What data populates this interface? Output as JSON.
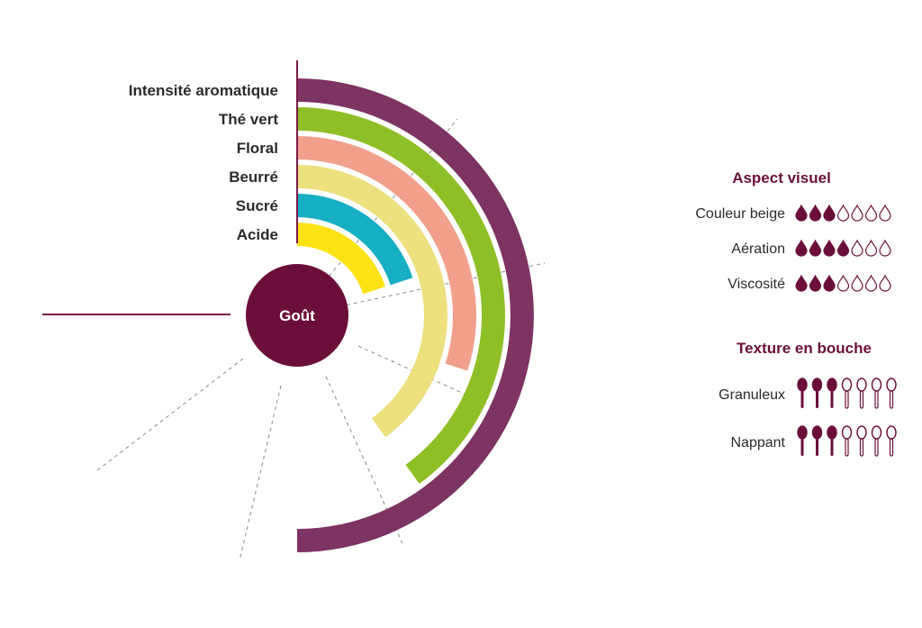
{
  "center_label": "Goût",
  "colors": {
    "accent": "#6b0f3a",
    "divider": "#7a1a45",
    "guide": "#8a8a8a"
  },
  "chart_data": {
    "type": "radial-bar",
    "series": [
      {
        "label": "Intensité aromatique",
        "color": "#7d3462",
        "value": 5
      },
      {
        "label": "Thé vert",
        "color": "#8fbf26",
        "value": 4
      },
      {
        "label": "Floral",
        "color": "#f2a08c",
        "value": 3
      },
      {
        "label": "Beurré",
        "color": "#ece07f",
        "value": 4
      },
      {
        "label": "Sucré",
        "color": "#16afc4",
        "value": 2
      },
      {
        "label": "Acide",
        "color": "#fde313",
        "value": 2
      }
    ],
    "scale_max": 6
  },
  "aspect_visuel": {
    "title": "Aspect visuel",
    "icon": "drop-icon",
    "max": 7,
    "items": [
      {
        "label": "Couleur beige",
        "value": 3
      },
      {
        "label": "Aération",
        "value": 4
      },
      {
        "label": "Viscosité",
        "value": 3
      }
    ]
  },
  "texture": {
    "title": "Texture en bouche",
    "icon": "spoon-icon",
    "max": 7,
    "items": [
      {
        "label": "Granuleux",
        "value": 3
      },
      {
        "label": "Nappant",
        "value": 3
      }
    ]
  }
}
